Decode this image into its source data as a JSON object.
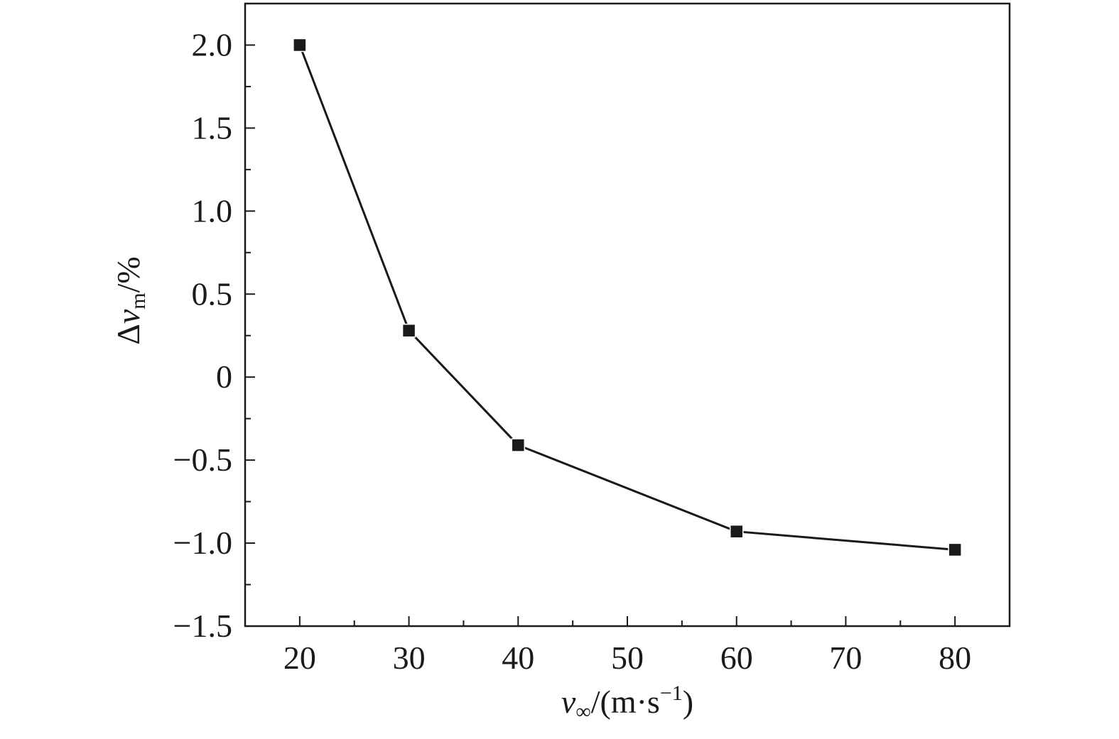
{
  "chart_data": {
    "type": "line",
    "x": [
      20,
      30,
      40,
      60,
      80
    ],
    "series": [
      {
        "values": [
          2.0,
          0.28,
          -0.41,
          -0.93,
          -1.04
        ]
      }
    ],
    "xlim": [
      15,
      85
    ],
    "ylim": [
      -1.5,
      2.25
    ],
    "xticks": [
      20,
      30,
      40,
      50,
      60,
      70,
      80
    ],
    "xtick_labels": [
      "20",
      "30",
      "40",
      "50",
      "60",
      "70",
      "80"
    ],
    "yticks": [
      2.0,
      1.5,
      1.0,
      0.5,
      0,
      -0.5,
      -1.0,
      -1.5
    ],
    "ytick_labels": [
      "2.0",
      "1.5",
      "1.0",
      "0.5",
      "0",
      "−0.5",
      "−1.0",
      "−1.5"
    ],
    "xlabel": {
      "base": "v",
      "sub": "∞",
      "unit": "/(m·s",
      "sup": "−1",
      "close": ")"
    },
    "ylabel": {
      "prefix": "Δ",
      "base": "v",
      "sub": "m",
      "unit": "/%"
    },
    "marker": "square",
    "line_color": "#1a1a1a",
    "marker_color": "#1a1a1a",
    "grid": false,
    "legend": "none"
  }
}
